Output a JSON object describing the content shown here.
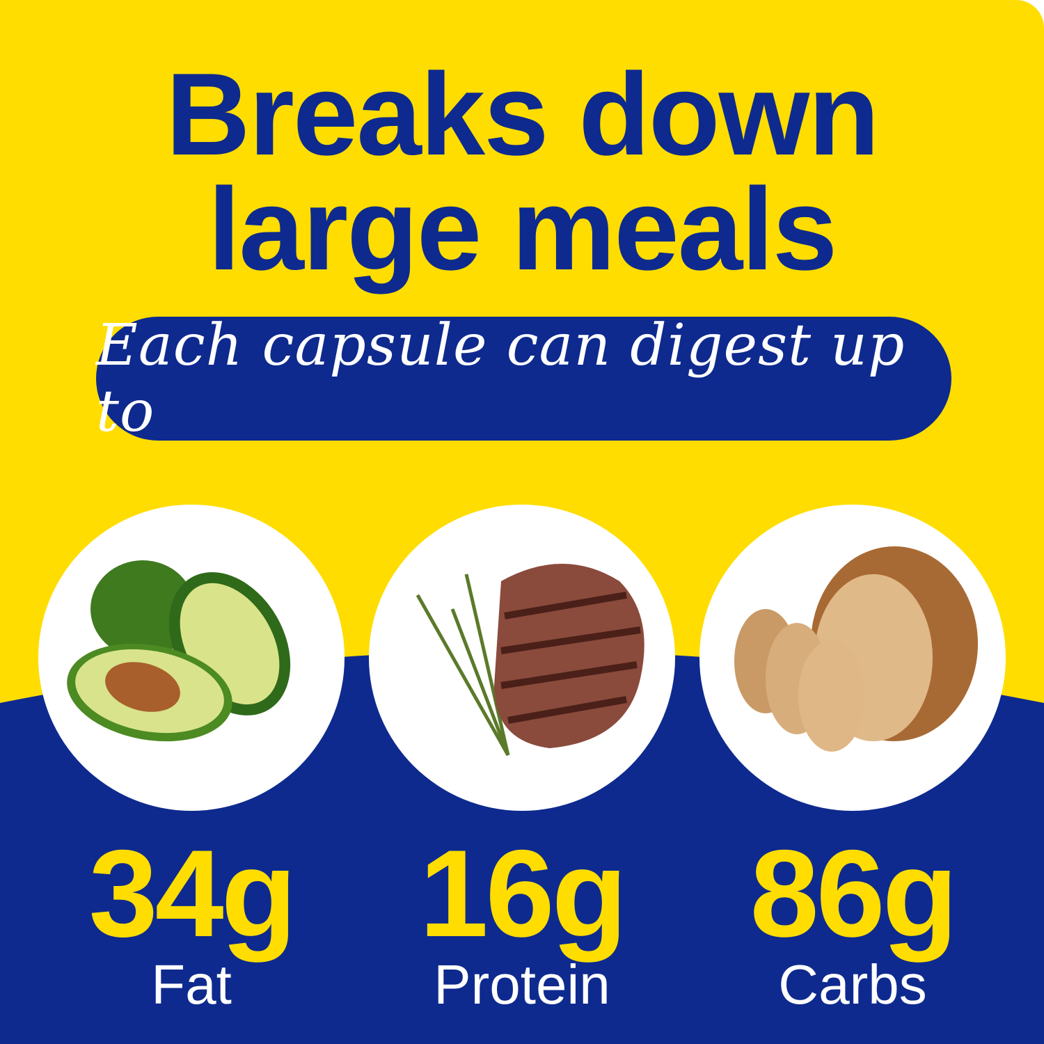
{
  "colors": {
    "yellow": "#FFDD00",
    "blue": "#0E2A8E",
    "white": "#FFFFFF"
  },
  "headline": {
    "line1": "Breaks down",
    "line2": "large meals"
  },
  "banner": {
    "text": "Each capsule can digest up to"
  },
  "nutrients": [
    {
      "amount": "34g",
      "label": "Fat",
      "icon": "avocado-icon"
    },
    {
      "amount": "16g",
      "label": "Protein",
      "icon": "steak-icon"
    },
    {
      "amount": "86g",
      "label": "Carbs",
      "icon": "bread-icon"
    }
  ]
}
